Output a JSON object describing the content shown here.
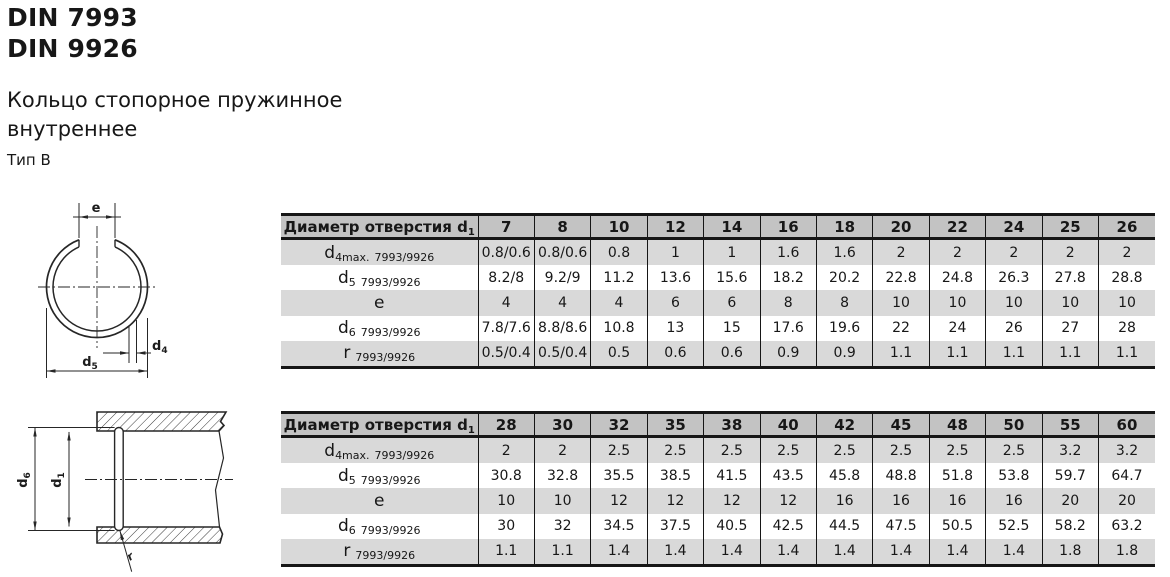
{
  "header": {
    "din1": "DIN 7993",
    "din2": "DIN 9926",
    "product_name_line1": "Кольцо стопорное пружинное",
    "product_name_line2": "внутреннее",
    "type_label": "Тип B"
  },
  "drawings": {
    "ring_front_view": {
      "dim_e": {
        "main": "e"
      },
      "dim_d4": {
        "main": "d",
        "sub": "4"
      },
      "dim_d5": {
        "main": "d",
        "sub": "5"
      }
    },
    "bore_section_view": {
      "dim_d6": {
        "main": "d",
        "sub": "6"
      },
      "dim_d1": {
        "main": "d",
        "sub": "1"
      },
      "dim_r": {
        "main": "r"
      }
    }
  },
  "colors": {
    "header_row_bg": "#c3c3c3",
    "row_alt_bg": "#d9d9d9",
    "row_bg": "#ffffff",
    "border": "#161616",
    "text": "#171717"
  },
  "tables": [
    {
      "corner_label": {
        "text": "Диаметр отверстия d",
        "sub": "1"
      },
      "columns": [
        "7",
        "8",
        "10",
        "12",
        "14",
        "16",
        "18",
        "20",
        "22",
        "24",
        "25",
        "26"
      ],
      "rows": [
        {
          "label": {
            "main": "d",
            "sub": "4max.",
            "std": "7993/9926"
          },
          "shaded": true,
          "values": [
            "0.8/0.6",
            "0.8/0.6",
            "0.8",
            "1",
            "1",
            "1.6",
            "1.6",
            "2",
            "2",
            "2",
            "2",
            "2"
          ]
        },
        {
          "label": {
            "main": "d",
            "sub": "5",
            "std": "7993/9926"
          },
          "shaded": false,
          "values": [
            "8.2/8",
            "9.2/9",
            "11.2",
            "13.6",
            "15.6",
            "18.2",
            "20.2",
            "22.8",
            "24.8",
            "26.3",
            "27.8",
            "28.8"
          ]
        },
        {
          "label": {
            "main": "e"
          },
          "shaded": true,
          "values": [
            "4",
            "4",
            "4",
            "6",
            "6",
            "8",
            "8",
            "10",
            "10",
            "10",
            "10",
            "10"
          ]
        },
        {
          "label": {
            "main": "d",
            "sub": "6",
            "std": "7993/9926"
          },
          "shaded": false,
          "values": [
            "7.8/7.6",
            "8.8/8.6",
            "10.8",
            "13",
            "15",
            "17.6",
            "19.6",
            "22",
            "24",
            "26",
            "27",
            "28"
          ]
        },
        {
          "label": {
            "main": "r",
            "std": "7993/9926"
          },
          "shaded": true,
          "values": [
            "0.5/0.4",
            "0.5/0.4",
            "0.5",
            "0.6",
            "0.6",
            "0.9",
            "0.9",
            "1.1",
            "1.1",
            "1.1",
            "1.1",
            "1.1"
          ]
        }
      ]
    },
    {
      "corner_label": {
        "text": "Диаметр отверстия d",
        "sub": "1"
      },
      "columns": [
        "28",
        "30",
        "32",
        "35",
        "38",
        "40",
        "42",
        "45",
        "48",
        "50",
        "55",
        "60"
      ],
      "rows": [
        {
          "label": {
            "main": "d",
            "sub": "4max.",
            "std": "7993/9926"
          },
          "shaded": true,
          "values": [
            "2",
            "2",
            "2.5",
            "2.5",
            "2.5",
            "2.5",
            "2.5",
            "2.5",
            "2.5",
            "2.5",
            "3.2",
            "3.2"
          ]
        },
        {
          "label": {
            "main": "d",
            "sub": "5",
            "std": "7993/9926"
          },
          "shaded": false,
          "values": [
            "30.8",
            "32.8",
            "35.5",
            "38.5",
            "41.5",
            "43.5",
            "45.8",
            "48.8",
            "51.8",
            "53.8",
            "59.7",
            "64.7"
          ]
        },
        {
          "label": {
            "main": "e"
          },
          "shaded": true,
          "values": [
            "10",
            "10",
            "12",
            "12",
            "12",
            "12",
            "16",
            "16",
            "16",
            "16",
            "20",
            "20"
          ]
        },
        {
          "label": {
            "main": "d",
            "sub": "6",
            "std": "7993/9926"
          },
          "shaded": false,
          "values": [
            "30",
            "32",
            "34.5",
            "37.5",
            "40.5",
            "42.5",
            "44.5",
            "47.5",
            "50.5",
            "52.5",
            "58.2",
            "63.2"
          ]
        },
        {
          "label": {
            "main": "r",
            "std": "7993/9926"
          },
          "shaded": true,
          "values": [
            "1.1",
            "1.1",
            "1.4",
            "1.4",
            "1.4",
            "1.4",
            "1.4",
            "1.4",
            "1.4",
            "1.4",
            "1.8",
            "1.8"
          ]
        }
      ]
    }
  ]
}
